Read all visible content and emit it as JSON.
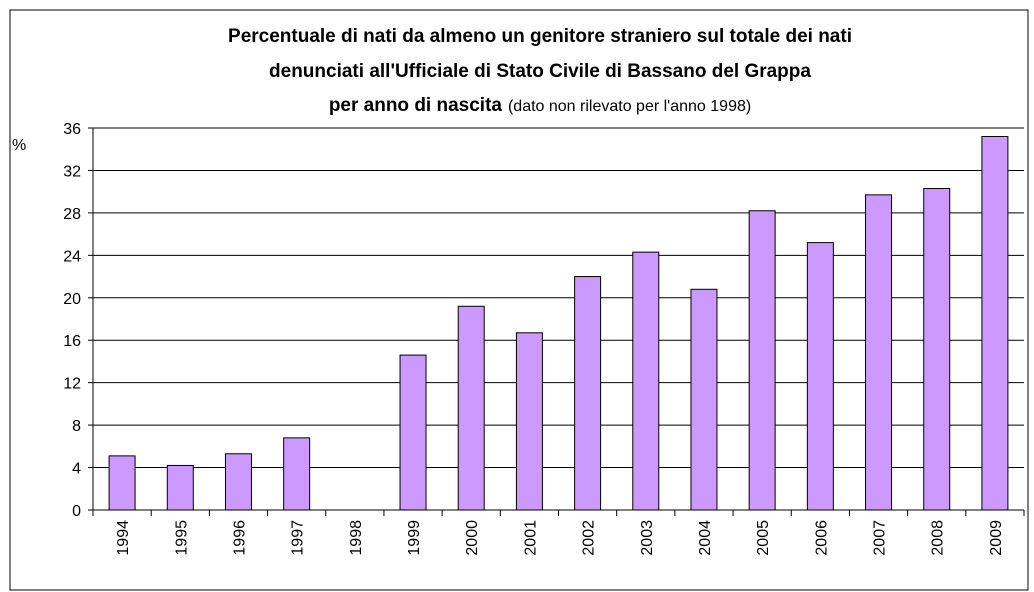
{
  "chart_data": {
    "type": "bar",
    "title": [
      "Percentuale di nati da almeno un genitore straniero sul totale dei nati",
      "denunciati all'Ufficiale di Stato Civile di Bassano del Grappa",
      "per anno di nascita"
    ],
    "subtitle": "(dato non rilevato per l'anno 1998)",
    "y_label": "%",
    "categories": [
      "1994",
      "1995",
      "1996",
      "1997",
      "1998",
      "1999",
      "2000",
      "2001",
      "2002",
      "2003",
      "2004",
      "2005",
      "2006",
      "2007",
      "2008",
      "2009"
    ],
    "values": [
      5.1,
      4.2,
      5.3,
      6.8,
      null,
      14.6,
      19.2,
      16.7,
      22.0,
      24.3,
      20.8,
      28.2,
      25.2,
      29.7,
      30.3,
      35.2
    ],
    "color": "#cc99ff",
    "ylim": [
      0,
      36
    ],
    "yticks": [
      0,
      4,
      8,
      12,
      16,
      20,
      24,
      28,
      32,
      36
    ],
    "grid": true
  }
}
